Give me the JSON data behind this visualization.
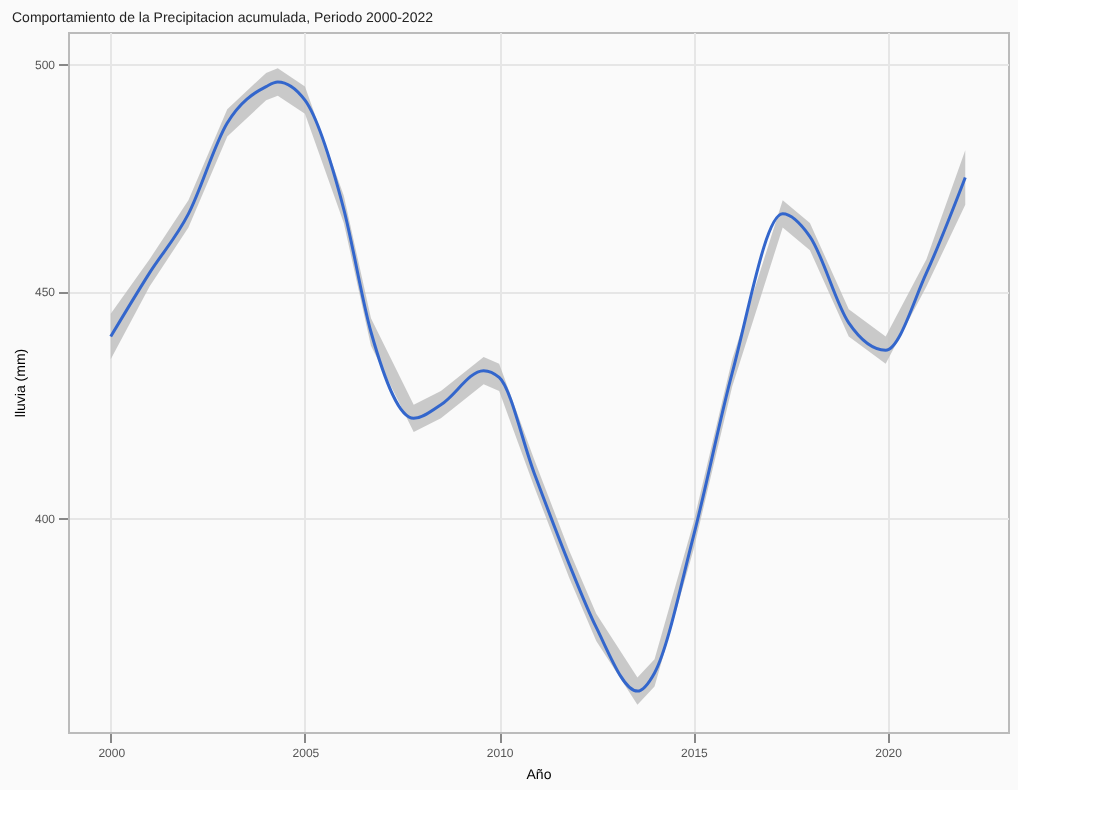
{
  "chart_data": {
    "type": "line",
    "title": "Comportamiento de la Precipitacion acumulada, Periodo 2000-2022",
    "xlabel": "Año",
    "ylabel": "lluvia (mm)",
    "x": [
      2000,
      2001,
      2002,
      2003,
      2004,
      2004.3,
      2005,
      2006,
      2006.7,
      2007.8,
      2008.5,
      2009.6,
      2010,
      2010.9,
      2011.8,
      2012.5,
      2013.56,
      2014,
      2015,
      2016,
      2017.3,
      2018,
      2019,
      2019.95,
      2021,
      2022
    ],
    "series": [
      {
        "color": "#3366cc",
        "values": [
          440,
          454,
          467,
          487,
          495,
          496,
          492,
          468,
          441,
          422,
          425,
          432.5,
          431,
          410,
          390,
          376,
          362,
          366,
          396,
          432,
          467,
          462,
          443,
          437,
          454,
          475
        ],
        "lower": [
          435,
          451,
          464,
          484,
          492,
          493,
          489,
          465,
          438,
          419,
          422,
          429.5,
          428,
          407,
          387,
          373,
          359,
          363,
          393,
          429,
          464,
          459,
          440,
          434,
          451,
          469
        ],
        "upper": [
          445,
          457,
          470,
          490,
          498,
          499,
          495,
          471,
          444,
          425,
          428,
          435.5,
          434,
          413,
          393,
          379,
          365,
          369,
          399,
          435,
          470,
          465,
          446,
          440,
          457,
          481
        ]
      }
    ],
    "xlim": [
      1998.9,
      2023.1
    ],
    "ylim": [
      353,
      507
    ],
    "xticks": [
      2000,
      2005,
      2010,
      2015,
      2020
    ],
    "yticks": [
      400,
      450,
      500
    ],
    "grid": true
  }
}
